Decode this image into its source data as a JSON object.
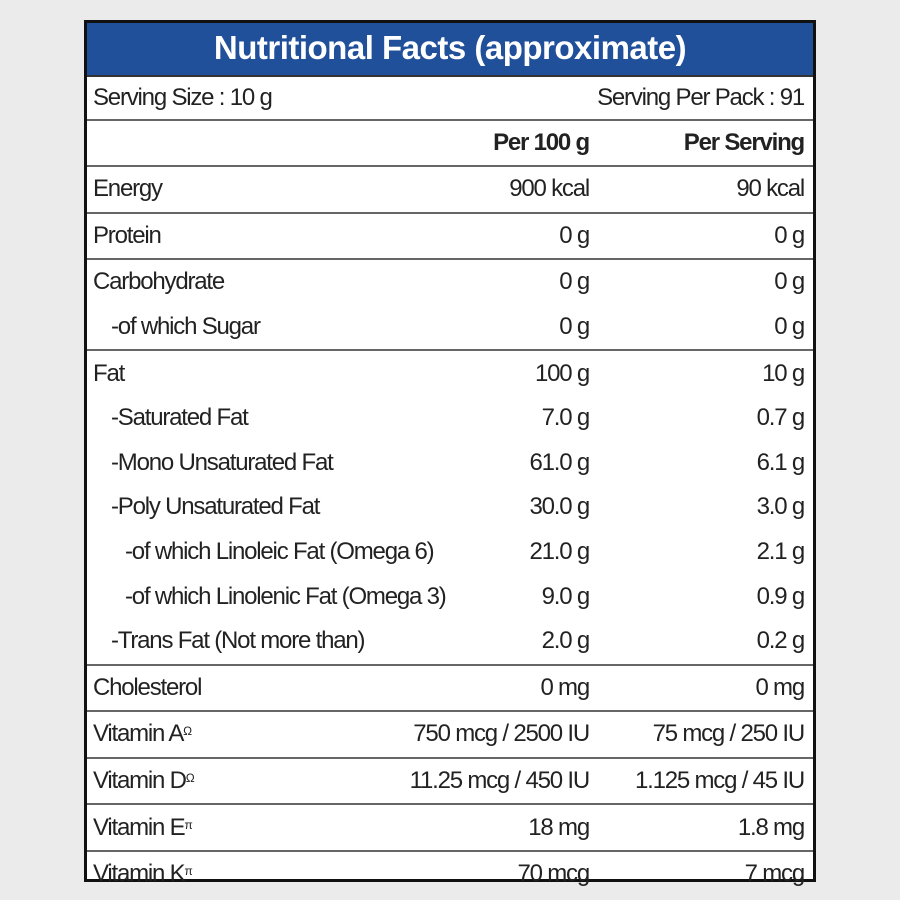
{
  "header": {
    "title": "Nutritional Facts (approximate)"
  },
  "serving": {
    "size": "Serving Size : 10 g",
    "per_pack": "Serving Per Pack : 91"
  },
  "table": {
    "columns": [
      "Per 100 g",
      "Per Serving"
    ],
    "rows": [
      {
        "label": "Energy",
        "per_100g": "900 kcal",
        "per_serving": "90 kcal"
      },
      {
        "label": "Protein",
        "per_100g": "0 g",
        "per_serving": "0 g"
      },
      {
        "label": "Carbohydrate",
        "per_100g": "0 g",
        "per_serving": "0 g"
      },
      {
        "label": "-of which Sugar",
        "per_100g": "0 g",
        "per_serving": "0 g"
      },
      {
        "label": "Fat",
        "per_100g": "100 g",
        "per_serving": "10 g"
      },
      {
        "label": "-Saturated Fat",
        "per_100g": "7.0 g",
        "per_serving": "0.7 g"
      },
      {
        "label": "-Mono Unsaturated Fat",
        "per_100g": "61.0 g",
        "per_serving": "6.1 g"
      },
      {
        "label": "-Poly Unsaturated Fat",
        "per_100g": "30.0 g",
        "per_serving": "3.0 g"
      },
      {
        "label": "-of which Linoleic Fat (Omega 6)",
        "per_100g": "21.0 g",
        "per_serving": "2.1 g"
      },
      {
        "label": "-of which Linolenic Fat (Omega 3)",
        "per_100g": "9.0 g",
        "per_serving": "0.9 g"
      },
      {
        "label": "-Trans Fat (Not more than)",
        "per_100g": "2.0 g",
        "per_serving": "0.2 g"
      },
      {
        "label": "Cholesterol",
        "per_100g": "0 mg",
        "per_serving": "0 mg"
      },
      {
        "label": "Vitamin A",
        "sup": "Ω",
        "per_100g": "750 mcg / 2500 IU",
        "per_serving": "75 mcg / 250 IU"
      },
      {
        "label": "Vitamin D",
        "sup": "Ω",
        "per_100g": "11.25 mcg / 450 IU",
        "per_serving": "1.125 mcg / 45 IU"
      },
      {
        "label": "Vitamin E",
        "sup": "π",
        "per_100g": "18 mg",
        "per_serving": "1.8 mg"
      },
      {
        "label": "Vitamin K",
        "sup": "π",
        "per_100g": "70 mcg",
        "per_serving": "7 mcg"
      }
    ]
  }
}
